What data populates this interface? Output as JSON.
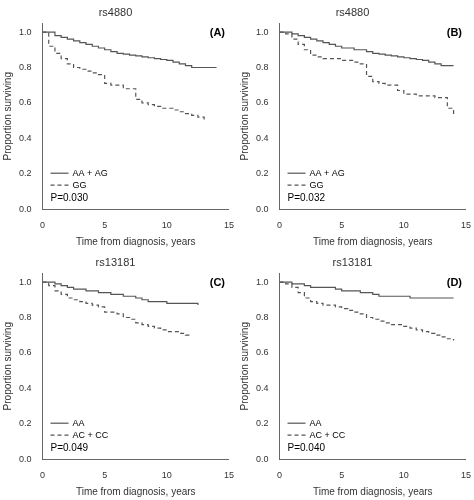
{
  "chart_data": [
    {
      "type": "line",
      "title": "rs4880",
      "annotations": [
        "(A)",
        "P=0.030"
      ],
      "x_label": "Time from diagnosis, years",
      "y_label": "Proportion surviving",
      "series": [
        {
          "name": "AA + AG",
          "color": "#555555",
          "line_style": "solid",
          "x": [
            0,
            0.5,
            1.0,
            1.5,
            2.0,
            2.5,
            3.0,
            3.5,
            4.0,
            4.5,
            5.0,
            5.5,
            6.0,
            6.5,
            7.0,
            7.5,
            8.0,
            8.5,
            9.0,
            9.5,
            10.0,
            10.5,
            11.0,
            11.5,
            12.0,
            13.0,
            14.0
          ],
          "values": [
            1.0,
            1.0,
            0.98,
            0.97,
            0.96,
            0.95,
            0.94,
            0.93,
            0.92,
            0.91,
            0.9,
            0.89,
            0.88,
            0.875,
            0.87,
            0.865,
            0.86,
            0.855,
            0.85,
            0.845,
            0.84,
            0.83,
            0.82,
            0.81,
            0.8,
            0.8,
            0.8
          ]
        },
        {
          "name": "GG",
          "color": "#555555",
          "line_style": "dashed",
          "x": [
            0,
            0.5,
            1.0,
            1.5,
            2.0,
            2.5,
            3.0,
            3.5,
            4.0,
            4.5,
            5.0,
            5.5,
            6.0,
            6.5,
            7.0,
            7.5,
            8.0,
            8.5,
            9.0,
            9.5,
            10.0,
            10.5,
            11.0,
            11.5,
            12.0,
            12.5,
            13.0
          ],
          "values": [
            1.0,
            0.92,
            0.88,
            0.85,
            0.82,
            0.8,
            0.79,
            0.78,
            0.77,
            0.76,
            0.71,
            0.7,
            0.7,
            0.68,
            0.68,
            0.62,
            0.6,
            0.59,
            0.58,
            0.57,
            0.57,
            0.56,
            0.55,
            0.54,
            0.53,
            0.52,
            0.5
          ]
        }
      ],
      "xlim": [
        0,
        15
      ],
      "xticks": [
        0,
        5,
        10,
        15
      ],
      "ylim": [
        0.0,
        1.05
      ],
      "yticks": [
        {
          "value": 0.0,
          "label": "0.0"
        },
        0.2,
        0.4,
        0.6,
        0.8,
        {
          "value": 1.0,
          "label": "1.0"
        }
      ],
      "grid": false,
      "legend": "lower left"
    },
    {
      "type": "line",
      "title": "rs4880",
      "annotations": [
        "(B)",
        "P=0.032"
      ],
      "x_label": "Time from diagnosis, years",
      "y_label": "Proportion surviving",
      "series": [
        {
          "name": "AA + AG",
          "color": "#555555",
          "line_style": "solid",
          "x": [
            0,
            0.5,
            1.0,
            1.5,
            2.0,
            2.5,
            3.0,
            3.5,
            4.0,
            4.5,
            5.0,
            5.5,
            6.0,
            6.5,
            7.0,
            7.5,
            8.0,
            8.5,
            9.0,
            9.5,
            10.0,
            10.5,
            11.0,
            11.5,
            12.0,
            12.5,
            13.0,
            13.5,
            14.0
          ],
          "values": [
            1.0,
            1.0,
            0.99,
            0.98,
            0.97,
            0.96,
            0.95,
            0.94,
            0.93,
            0.92,
            0.91,
            0.91,
            0.9,
            0.9,
            0.89,
            0.88,
            0.875,
            0.87,
            0.865,
            0.86,
            0.855,
            0.85,
            0.845,
            0.84,
            0.83,
            0.82,
            0.81,
            0.81,
            0.81
          ]
        },
        {
          "name": "GG",
          "color": "#555555",
          "line_style": "dashed",
          "x": [
            0,
            0.5,
            1.0,
            1.5,
            2.0,
            2.5,
            3.0,
            3.5,
            4.0,
            4.5,
            5.0,
            5.5,
            6.0,
            6.5,
            7.0,
            7.5,
            8.0,
            8.5,
            9.0,
            9.5,
            10.0,
            10.5,
            11.0,
            11.5,
            12.0,
            12.5,
            13.0,
            13.5,
            14.0
          ],
          "values": [
            1.0,
            0.99,
            0.96,
            0.93,
            0.9,
            0.87,
            0.86,
            0.85,
            0.85,
            0.85,
            0.84,
            0.84,
            0.83,
            0.82,
            0.75,
            0.72,
            0.71,
            0.7,
            0.7,
            0.67,
            0.65,
            0.65,
            0.64,
            0.64,
            0.64,
            0.63,
            0.63,
            0.57,
            0.52
          ]
        }
      ],
      "xlim": [
        0,
        15
      ],
      "xticks": [
        0,
        5,
        10,
        15
      ],
      "ylim": [
        0.0,
        1.05
      ],
      "yticks": [
        {
          "value": 0.0,
          "label": "0.0"
        },
        0.2,
        0.4,
        0.6,
        0.8,
        {
          "value": 1.0,
          "label": "1.0"
        }
      ],
      "grid": false,
      "legend": "lower left"
    },
    {
      "type": "line",
      "title": "rs13181",
      "annotations": [
        "(C)",
        "P=0.049"
      ],
      "x_label": "Time from diagnosis, years",
      "y_label": "Proportion surviving",
      "series": [
        {
          "name": "AA",
          "color": "#555555",
          "line_style": "solid",
          "x": [
            0,
            0.5,
            1.0,
            1.5,
            2.0,
            2.5,
            3.0,
            3.5,
            4.0,
            4.5,
            5.0,
            5.5,
            6.0,
            6.5,
            7.0,
            7.5,
            8.0,
            8.5,
            9.0,
            9.5,
            10.0,
            10.5,
            11.0,
            11.5,
            12.0,
            12.5
          ],
          "values": [
            1.0,
            1.0,
            0.99,
            0.98,
            0.97,
            0.96,
            0.96,
            0.95,
            0.95,
            0.94,
            0.94,
            0.93,
            0.93,
            0.92,
            0.92,
            0.91,
            0.9,
            0.89,
            0.89,
            0.89,
            0.88,
            0.88,
            0.88,
            0.88,
            0.88,
            0.87
          ]
        },
        {
          "name": "AC + CC",
          "color": "#555555",
          "line_style": "dashed",
          "x": [
            0,
            0.5,
            1.0,
            1.5,
            2.0,
            2.5,
            3.0,
            3.5,
            4.0,
            4.5,
            5.0,
            5.5,
            6.0,
            6.5,
            7.0,
            7.5,
            8.0,
            8.5,
            9.0,
            9.5,
            10.0,
            10.5,
            11.0,
            11.5,
            12.0
          ],
          "values": [
            1.0,
            0.98,
            0.95,
            0.93,
            0.91,
            0.9,
            0.89,
            0.88,
            0.87,
            0.86,
            0.83,
            0.83,
            0.82,
            0.8,
            0.79,
            0.77,
            0.76,
            0.75,
            0.74,
            0.73,
            0.72,
            0.72,
            0.71,
            0.7,
            0.7
          ]
        }
      ],
      "xlim": [
        0,
        15
      ],
      "xticks": [
        0,
        5,
        10,
        15
      ],
      "ylim": [
        0.0,
        1.05
      ],
      "yticks": [
        {
          "value": 0.0,
          "label": "0.0"
        },
        0.2,
        0.4,
        0.6,
        0.8,
        {
          "value": 1.0,
          "label": "1.0"
        }
      ],
      "grid": false,
      "legend": "lower left"
    },
    {
      "type": "line",
      "title": "rs13181",
      "annotations": [
        "(D)",
        "P=0.040"
      ],
      "x_label": "Time from diagnosis, years",
      "y_label": "Proportion surviving",
      "series": [
        {
          "name": "AA",
          "color": "#555555",
          "line_style": "solid",
          "x": [
            0,
            0.5,
            1.0,
            1.5,
            2.0,
            2.5,
            3.0,
            3.5,
            4.0,
            4.5,
            5.0,
            5.5,
            6.0,
            6.5,
            7.0,
            7.5,
            8.0,
            8.5,
            9.0,
            9.5,
            10.0,
            10.5,
            11.0,
            11.5,
            12.0,
            12.5,
            13.0,
            13.5,
            14.0
          ],
          "values": [
            1.0,
            1.0,
            0.99,
            0.99,
            0.98,
            0.97,
            0.97,
            0.97,
            0.97,
            0.96,
            0.95,
            0.95,
            0.95,
            0.94,
            0.94,
            0.93,
            0.92,
            0.92,
            0.92,
            0.92,
            0.92,
            0.91,
            0.91,
            0.91,
            0.91,
            0.91,
            0.91,
            0.91,
            0.91
          ]
        },
        {
          "name": "AC + CC",
          "color": "#555555",
          "line_style": "dashed",
          "x": [
            0,
            0.5,
            1.0,
            1.5,
            2.0,
            2.5,
            3.0,
            3.5,
            4.0,
            4.5,
            5.0,
            5.5,
            6.0,
            6.5,
            7.0,
            7.5,
            8.0,
            8.5,
            9.0,
            9.5,
            10.0,
            10.5,
            11.0,
            11.5,
            12.0,
            12.5,
            13.0,
            13.5,
            14.0
          ],
          "values": [
            1.0,
            0.99,
            0.97,
            0.94,
            0.91,
            0.89,
            0.88,
            0.87,
            0.87,
            0.86,
            0.85,
            0.84,
            0.83,
            0.82,
            0.8,
            0.79,
            0.78,
            0.77,
            0.76,
            0.76,
            0.75,
            0.74,
            0.73,
            0.72,
            0.71,
            0.7,
            0.69,
            0.68,
            0.67
          ]
        }
      ],
      "xlim": [
        0,
        15
      ],
      "xticks": [
        0,
        5,
        10,
        15
      ],
      "ylim": [
        0.0,
        1.05
      ],
      "yticks": [
        {
          "value": 0.0,
          "label": "0.0"
        },
        0.2,
        0.4,
        0.6,
        0.8,
        {
          "value": 1.0,
          "label": "1.0"
        }
      ],
      "grid": false,
      "legend": "lower left"
    }
  ]
}
